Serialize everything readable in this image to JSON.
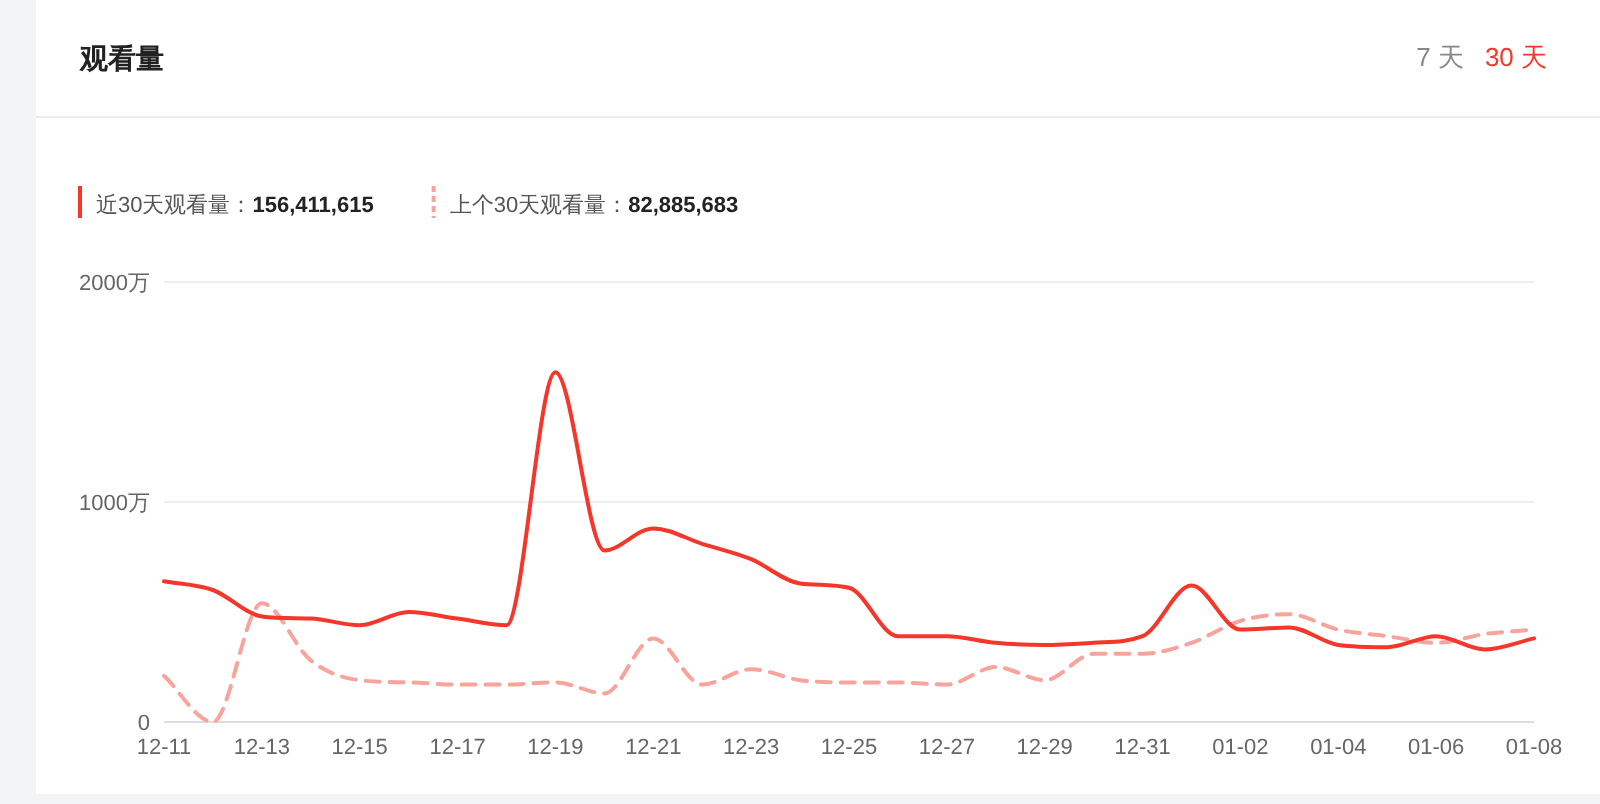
{
  "chart_data": {
    "type": "line",
    "title": "观看量",
    "annotations": [
      "7 天",
      "30 天"
    ],
    "categories": [
      "12-11",
      null,
      "12-13",
      null,
      "12-15",
      null,
      "12-17",
      null,
      "12-19",
      null,
      "12-21",
      null,
      "12-23",
      null,
      "12-25",
      null,
      "12-27",
      null,
      "12-29",
      null,
      "12-31",
      null,
      "01-02",
      null,
      "01-04",
      null,
      "01-06",
      null,
      "01-08"
    ],
    "series": [
      {
        "name": "近30天观看量：**156,411,615**",
        "color": "#f5362b",
        "line_style": "solid",
        "values": [
          640,
          600,
          480,
          470,
          440,
          500,
          470,
          440,
          1590,
          780,
          880,
          810,
          740,
          630,
          610,
          390,
          390,
          360,
          350,
          360,
          390,
          620,
          420,
          430,
          350,
          340,
          390,
          330,
          380
        ]
      },
      {
        "name": "上个30天观看量：**82,885,683**",
        "color": "#f9a39d",
        "line_style": "dashed",
        "values": [
          210,
          0,
          540,
          280,
          190,
          180,
          170,
          170,
          180,
          130,
          380,
          170,
          240,
          190,
          180,
          180,
          170,
          250,
          190,
          310,
          310,
          360,
          460,
          490,
          420,
          390,
          360,
          400,
          420
        ]
      }
    ],
    "ylim": [
      0,
      2000
    ],
    "yticks": [
      0,
      {
        "value": 1000,
        "label": "1000万"
      },
      {
        "value": 2000,
        "label": "2000万"
      }
    ],
    "grid": "y",
    "legend": "top left",
    "marker": "none"
  }
}
